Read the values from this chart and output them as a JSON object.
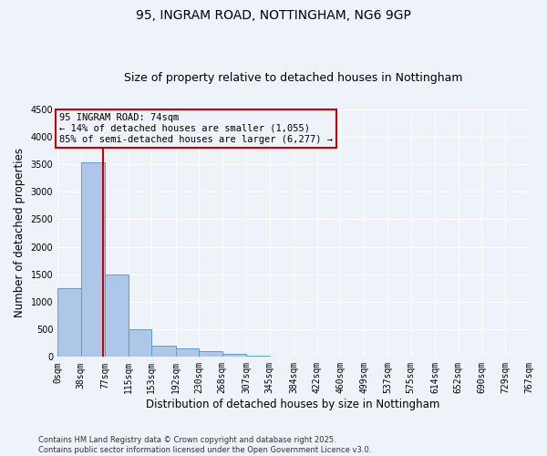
{
  "title_line1": "95, INGRAM ROAD, NOTTINGHAM, NG6 9GP",
  "title_line2": "Size of property relative to detached houses in Nottingham",
  "xlabel": "Distribution of detached houses by size in Nottingham",
  "ylabel": "Number of detached properties",
  "bin_edges": [
    0,
    38,
    77,
    115,
    153,
    192,
    230,
    268,
    307,
    345,
    384,
    422,
    460,
    499,
    537,
    575,
    614,
    652,
    690,
    729,
    767
  ],
  "bar_heights": [
    1255,
    3540,
    1490,
    500,
    200,
    150,
    100,
    50,
    20,
    0,
    0,
    0,
    0,
    0,
    0,
    0,
    0,
    0,
    0,
    0
  ],
  "bar_color": "#aec6e8",
  "bar_edge_color": "#5a9fd4",
  "property_size": 74,
  "vline_color": "#cc0000",
  "annotation_box_color": "#cc0000",
  "annotation_text": "95 INGRAM ROAD: 74sqm\n← 14% of detached houses are smaller (1,055)\n85% of semi-detached houses are larger (6,277) →",
  "annotation_fontsize": 7.5,
  "ylim": [
    0,
    4500
  ],
  "yticks": [
    0,
    500,
    1000,
    1500,
    2000,
    2500,
    3000,
    3500,
    4000,
    4500
  ],
  "footer_text": "Contains HM Land Registry data © Crown copyright and database right 2025.\nContains public sector information licensed under the Open Government Licence v3.0.",
  "background_color": "#eef2f9",
  "grid_color": "#ffffff",
  "title_fontsize": 10,
  "subtitle_fontsize": 9,
  "axis_label_fontsize": 8.5,
  "tick_fontsize": 7,
  "footer_fontsize": 6
}
